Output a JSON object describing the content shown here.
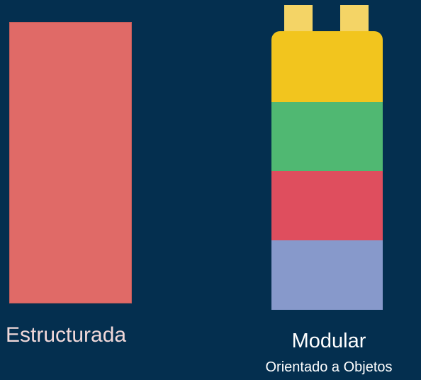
{
  "background": "#042F4F",
  "left": {
    "label": "Estructurada",
    "block_color": "#E06A67",
    "label_color": "#F1D9DA"
  },
  "right": {
    "label": "Modular",
    "sublabel": "Orientado a Objetos",
    "label_color": "#FFFFFF",
    "stud_color": "#F4D466",
    "layer_colors": [
      "#F2C51E",
      "#50B872",
      "#DF4E5E",
      "#8799CB"
    ]
  }
}
